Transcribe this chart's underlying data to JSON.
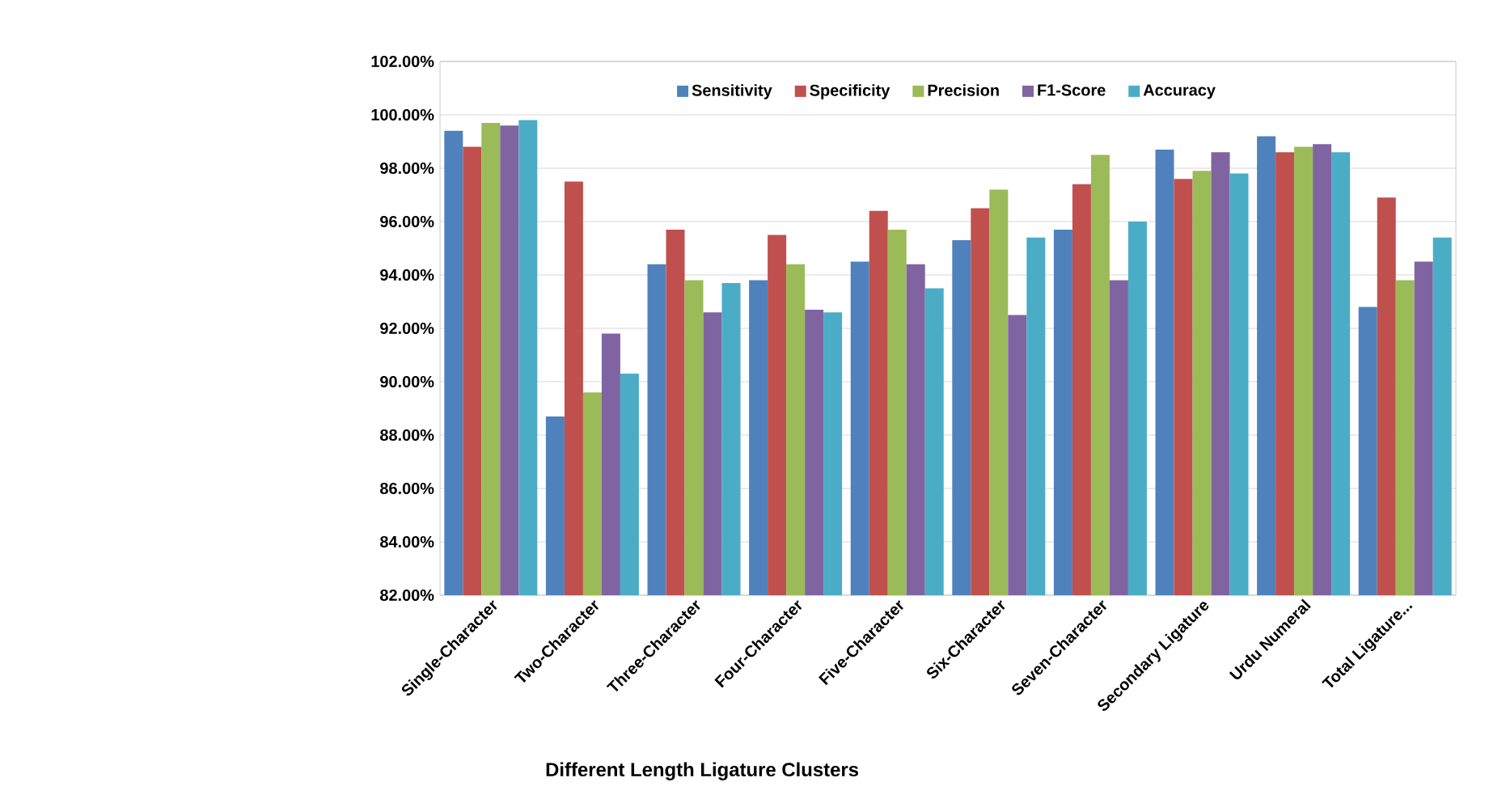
{
  "chart_data": {
    "type": "bar",
    "xlabel": "Different Length Ligature Clusters",
    "categories": [
      "Single-Character",
      "Two-Character",
      "Three-Character",
      "Four-Character",
      "Five-Character",
      "Six-Character",
      "Seven-Character",
      "Secondary Ligature",
      "Urdu Numeral",
      "Total Ligature..."
    ],
    "series": [
      {
        "name": "Sensitivity",
        "color": "#4f81bd",
        "values": [
          99.4,
          88.7,
          94.4,
          93.8,
          94.5,
          95.3,
          95.7,
          98.7,
          99.2,
          92.8
        ]
      },
      {
        "name": "Specificity",
        "color": "#c0504d",
        "values": [
          98.8,
          97.5,
          95.7,
          95.5,
          96.4,
          96.5,
          97.4,
          97.6,
          98.6,
          96.9
        ]
      },
      {
        "name": "Precision",
        "color": "#9bbb59",
        "values": [
          99.7,
          89.6,
          93.8,
          94.4,
          95.7,
          97.2,
          98.5,
          97.9,
          98.8,
          93.8
        ]
      },
      {
        "name": "F1-Score",
        "color": "#8064a2",
        "values": [
          99.6,
          91.8,
          92.6,
          92.7,
          94.4,
          92.5,
          93.8,
          98.6,
          98.9,
          94.5
        ]
      },
      {
        "name": "Accuracy",
        "color": "#4bacc6",
        "values": [
          99.8,
          90.3,
          93.7,
          92.6,
          93.5,
          95.4,
          96.0,
          97.8,
          98.6,
          95.4
        ]
      }
    ],
    "ylim": [
      82,
      102
    ],
    "yticks": [
      {
        "value": 82,
        "label": "82.00%"
      },
      {
        "value": 84,
        "label": "84.00%"
      },
      {
        "value": 86,
        "label": "86.00%"
      },
      {
        "value": 88,
        "label": "88.00%"
      },
      {
        "value": 90,
        "label": "90.00%"
      },
      {
        "value": 92,
        "label": "92.00%"
      },
      {
        "value": 94,
        "label": "94.00%"
      },
      {
        "value": 96,
        "label": "96.00%"
      },
      {
        "value": 98,
        "label": "98.00%"
      },
      {
        "value": 100,
        "label": "100.00%"
      },
      {
        "value": 102,
        "label": "102.00%"
      }
    ],
    "grid": "y",
    "legend": "top"
  }
}
